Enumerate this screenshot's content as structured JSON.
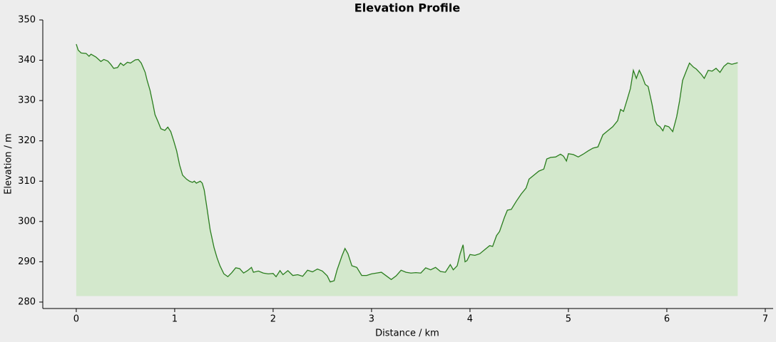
{
  "chart_data": {
    "type": "area-line",
    "title": "Elevation Profile",
    "x_label": "Distance / km",
    "y_label": "Elevation / m",
    "x": [
      0,
      0.02,
      0.05,
      0.1,
      0.13,
      0.15,
      0.2,
      0.25,
      0.28,
      0.32,
      0.35,
      0.38,
      0.42,
      0.45,
      0.48,
      0.52,
      0.55,
      0.6,
      0.63,
      0.66,
      0.7,
      0.72,
      0.75,
      0.78,
      0.8,
      0.83,
      0.86,
      0.9,
      0.93,
      0.96,
      0.99,
      1.02,
      1.05,
      1.08,
      1.12,
      1.15,
      1.18,
      1.2,
      1.22,
      1.26,
      1.28,
      1.3,
      1.33,
      1.36,
      1.4,
      1.43,
      1.46,
      1.5,
      1.54,
      1.58,
      1.62,
      1.66,
      1.7,
      1.74,
      1.78,
      1.8,
      1.85,
      1.9,
      1.95,
      2.0,
      2.03,
      2.07,
      2.1,
      2.15,
      2.2,
      2.25,
      2.3,
      2.35,
      2.4,
      2.45,
      2.5,
      2.55,
      2.58,
      2.62,
      2.65,
      2.7,
      2.73,
      2.76,
      2.8,
      2.85,
      2.9,
      2.95,
      3.0,
      3.05,
      3.1,
      3.15,
      3.2,
      3.25,
      3.3,
      3.35,
      3.4,
      3.45,
      3.5,
      3.55,
      3.6,
      3.65,
      3.7,
      3.75,
      3.8,
      3.83,
      3.87,
      3.9,
      3.93,
      3.95,
      3.97,
      4.0,
      4.05,
      4.1,
      4.15,
      4.2,
      4.23,
      4.27,
      4.3,
      4.35,
      4.38,
      4.42,
      4.47,
      4.52,
      4.57,
      4.6,
      4.65,
      4.7,
      4.75,
      4.78,
      4.82,
      4.87,
      4.92,
      4.95,
      4.98,
      5.0,
      5.05,
      5.1,
      5.15,
      5.2,
      5.25,
      5.3,
      5.35,
      5.4,
      5.45,
      5.5,
      5.53,
      5.56,
      5.6,
      5.63,
      5.66,
      5.69,
      5.72,
      5.75,
      5.78,
      5.81,
      5.85,
      5.88,
      5.9,
      5.93,
      5.96,
      5.98,
      6.02,
      6.06,
      6.1,
      6.13,
      6.16,
      6.2,
      6.23,
      6.27,
      6.3,
      6.35,
      6.38,
      6.42,
      6.46,
      6.5,
      6.54,
      6.58,
      6.62,
      6.66,
      6.72
    ],
    "y": [
      344,
      342.5,
      341.8,
      341.7,
      341,
      341.5,
      340.8,
      339.7,
      340.2,
      339.8,
      339,
      338,
      338.2,
      339.3,
      338.7,
      339.5,
      339.3,
      340.1,
      340.2,
      339.3,
      337,
      335,
      332.5,
      329,
      326.5,
      324.8,
      323,
      322.6,
      323.4,
      322.3,
      320,
      317.5,
      314,
      311.5,
      310.5,
      310,
      309.7,
      310,
      309.5,
      310,
      309.5,
      307.8,
      303,
      298,
      293.5,
      291,
      289,
      287,
      286.3,
      287.3,
      288.5,
      288.3,
      287.2,
      287.8,
      288.6,
      287.4,
      287.7,
      287.2,
      287,
      287.1,
      286.3,
      287.8,
      286.8,
      287.8,
      286.6,
      286.8,
      286.4,
      287.9,
      287.5,
      288.2,
      287.7,
      286.5,
      285,
      285.3,
      288,
      291.5,
      293.3,
      292,
      289,
      288.6,
      286.6,
      286.6,
      287,
      287.2,
      287.4,
      286.5,
      285.6,
      286.5,
      287.9,
      287.4,
      287.2,
      287.3,
      287.2,
      288.5,
      288,
      288.6,
      287.6,
      287.4,
      289.3,
      288,
      289,
      292,
      294.2,
      290,
      290.3,
      291.8,
      291.6,
      292,
      293,
      294,
      293.8,
      296.5,
      297.5,
      301,
      302.8,
      303,
      305,
      306.8,
      308.3,
      310.5,
      311.5,
      312.5,
      313,
      315.5,
      315.9,
      316,
      316.7,
      316.2,
      315,
      316.8,
      316.6,
      316,
      316.7,
      317.5,
      318.2,
      318.5,
      321.5,
      322.5,
      323.5,
      325,
      327.8,
      327.3,
      330.5,
      333,
      337.5,
      335.5,
      337.5,
      336,
      334,
      333.5,
      329,
      325,
      324,
      323.5,
      322.5,
      323.8,
      323.5,
      322.3,
      326,
      330,
      335,
      337.5,
      339.3,
      338.3,
      337.8,
      336.5,
      335.5,
      337.5,
      337.3,
      338,
      337,
      338.5,
      339.3,
      339,
      339.4
    ],
    "color": "#2a7d1e",
    "fill_color": "#d3e8cc",
    "fill_baseline": 281.5,
    "xlim": [
      -0.34,
      7.08
    ],
    "ylim": [
      278.4,
      350
    ],
    "xticks": [
      0,
      1,
      2,
      3,
      4,
      5,
      6,
      7
    ],
    "yticks": [
      280,
      290,
      300,
      310,
      320,
      330,
      340,
      350
    ]
  }
}
